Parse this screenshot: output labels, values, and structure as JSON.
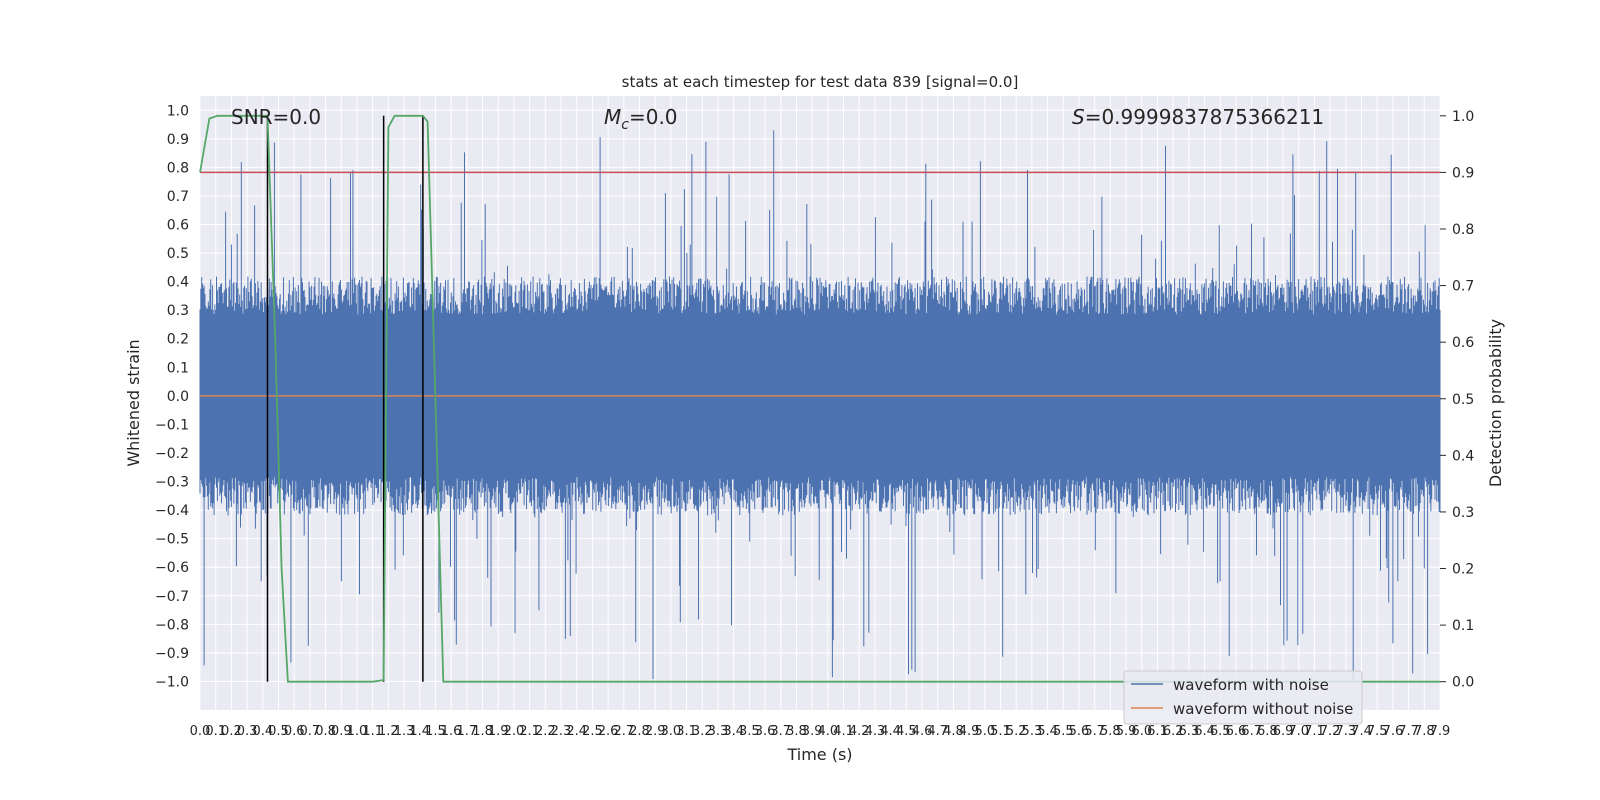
{
  "chart_data": {
    "type": "line",
    "title": "stats at each timestep for test data 839 [signal=0.0]",
    "xlabel": "Time (s)",
    "ylabel_left": "Whitened strain",
    "ylabel_right": "Detection probability",
    "xlim": [
      0.0,
      7.9
    ],
    "ylim_left": [
      -1.1,
      1.05
    ],
    "ylim_right": [
      -0.05,
      1.035
    ],
    "x_ticks": [
      "0.0",
      "0.1",
      "0.2",
      "0.3",
      "0.4",
      "0.5",
      "0.6",
      "0.7",
      "0.8",
      "0.9",
      "1.0",
      "1.1",
      "1.2",
      "1.3",
      "1.4",
      "1.5",
      "1.6",
      "1.7",
      "1.8",
      "1.9",
      "2.0",
      "2.1",
      "2.2",
      "2.3",
      "2.4",
      "2.5",
      "2.6",
      "2.7",
      "2.8",
      "2.9",
      "3.0",
      "3.1",
      "3.2",
      "3.3",
      "3.4",
      "3.5",
      "3.6",
      "3.7",
      "3.8",
      "3.9",
      "4.0",
      "4.1",
      "4.2",
      "4.3",
      "4.4",
      "4.5",
      "4.6",
      "4.7",
      "4.8",
      "4.9",
      "5.0",
      "5.1",
      "5.2",
      "5.3",
      "5.4",
      "5.5",
      "5.6",
      "5.7",
      "5.8",
      "5.9",
      "6.0",
      "6.1",
      "6.2",
      "6.3",
      "6.4",
      "6.5",
      "6.6",
      "6.7",
      "6.8",
      "6.9",
      "7.0",
      "7.1",
      "7.2",
      "7.3",
      "7.4",
      "7.5",
      "7.6",
      "7.7",
      "7.8",
      "7.9"
    ],
    "y_ticks_left": [
      "1.0",
      "0.9",
      "0.8",
      "0.7",
      "0.6",
      "0.5",
      "0.4",
      "0.3",
      "0.2",
      "0.1",
      "0.0",
      "−0.1",
      "−0.2",
      "−0.3",
      "−0.4",
      "−0.5",
      "−0.6",
      "−0.7",
      "−0.8",
      "−0.9",
      "−1.0"
    ],
    "y_ticks_right": [
      "1.0",
      "0.9",
      "0.8",
      "0.7",
      "0.6",
      "0.5",
      "0.4",
      "0.3",
      "0.2",
      "0.1",
      "0.0"
    ],
    "annotations": {
      "snr": "SNR=0.0",
      "mc_symbol": "M",
      "mc_sub": "c",
      "mc_value": "=0.0",
      "s_symbol": "S",
      "s_value": "=0.9999837875366211"
    },
    "series": [
      {
        "name": "waveform with noise",
        "color": "#4c72b0",
        "kind": "noise",
        "typical_band": [
          -0.38,
          0.38
        ],
        "peak_max": 0.93,
        "peak_min": -1.0
      },
      {
        "name": "waveform without noise",
        "color": "#dd8452",
        "kind": "constant",
        "value": 0.0
      }
    ],
    "detection_probability": {
      "color": "#55a868",
      "x": [
        0.0,
        0.06,
        0.11,
        0.2,
        0.3,
        0.43,
        0.48,
        0.52,
        0.55,
        0.56,
        1.1,
        1.17,
        1.2,
        1.24,
        1.27,
        1.42,
        1.45,
        1.51,
        1.55,
        7.9
      ],
      "y": [
        0.9,
        0.995,
        1.0,
        1.0,
        1.0,
        1.0,
        0.6,
        0.2,
        0.05,
        0.0,
        0.0,
        0.003,
        0.98,
        1.0,
        1.0,
        1.0,
        0.99,
        0.4,
        0.0,
        0.0
      ]
    },
    "threshold": {
      "color": "#c44e52",
      "value": 0.9
    },
    "vertical_lines_x": [
      0.43,
      1.17,
      1.42
    ],
    "legend_position": "lower-right",
    "grid": true
  }
}
